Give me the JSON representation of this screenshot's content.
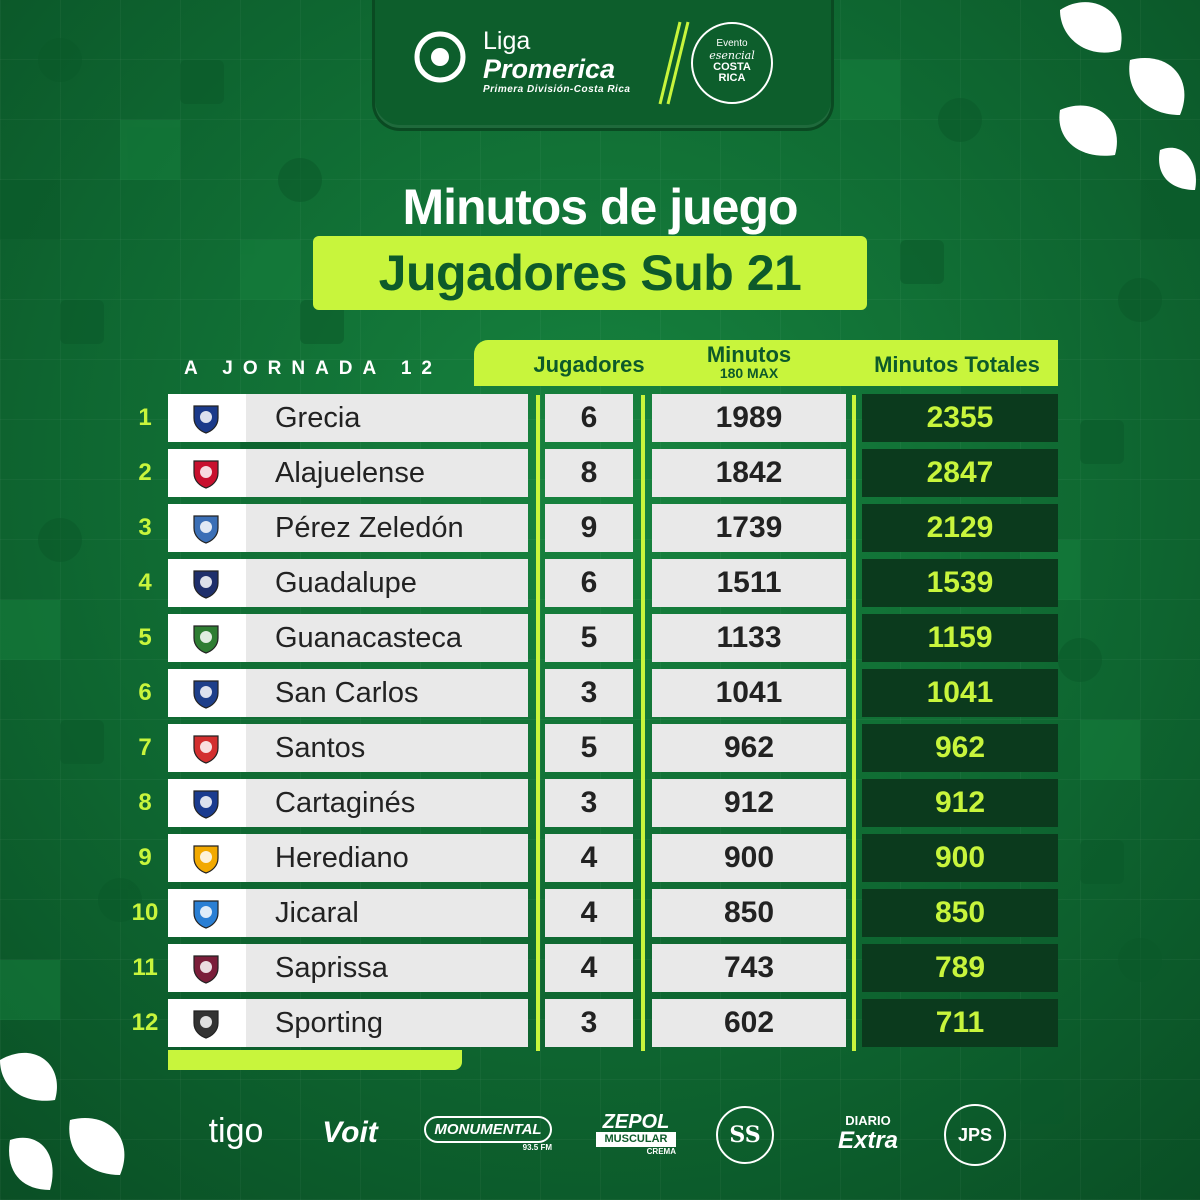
{
  "header": {
    "liga_line1": "Liga",
    "liga_line2": "Promerica",
    "liga_line3": "Primera División-Costa Rica",
    "evento_line1": "Evento",
    "evento_line2": "esencial",
    "evento_line3": "COSTA",
    "evento_line4": "RICA"
  },
  "title": "Minutos de juego",
  "subtitle": "Jugadores Sub 21",
  "jornada": "A JORNADA 12",
  "columns": {
    "jugadores": "Jugadores",
    "minutos": "Minutos",
    "minutos_sub": "180 MAX",
    "minutos_totales": "Minutos Totales"
  },
  "rows": [
    {
      "rank": "1",
      "team": "Grecia",
      "jugadores": "6",
      "minutos": "1989",
      "totales": "2355",
      "crest_color": "#1b3a8a"
    },
    {
      "rank": "2",
      "team": "Alajuelense",
      "jugadores": "8",
      "minutos": "1842",
      "totales": "2847",
      "crest_color": "#c8102e"
    },
    {
      "rank": "3",
      "team": "Pérez Zeledón",
      "jugadores": "9",
      "minutos": "1739",
      "totales": "2129",
      "crest_color": "#3b6fb6"
    },
    {
      "rank": "4",
      "team": "Guadalupe",
      "jugadores": "6",
      "minutos": "1511",
      "totales": "1539",
      "crest_color": "#1f2f6b"
    },
    {
      "rank": "5",
      "team": "Guanacasteca",
      "jugadores": "5",
      "minutos": "1133",
      "totales": "1159",
      "crest_color": "#2e7d32"
    },
    {
      "rank": "6",
      "team": "San Carlos",
      "jugadores": "3",
      "minutos": "1041",
      "totales": "1041",
      "crest_color": "#1e3f8a"
    },
    {
      "rank": "7",
      "team": "Santos",
      "jugadores": "5",
      "minutos": "962",
      "totales": "962",
      "crest_color": "#d32f2f"
    },
    {
      "rank": "8",
      "team": "Cartaginés",
      "jugadores": "3",
      "minutos": "912",
      "totales": "912",
      "crest_color": "#1a3b8f"
    },
    {
      "rank": "9",
      "team": "Herediano",
      "jugadores": "4",
      "minutos": "900",
      "totales": "900",
      "crest_color": "#f2a900"
    },
    {
      "rank": "10",
      "team": "Jicaral",
      "jugadores": "4",
      "minutos": "850",
      "totales": "850",
      "crest_color": "#2a7fd4"
    },
    {
      "rank": "11",
      "team": "Saprissa",
      "jugadores": "4",
      "minutos": "743",
      "totales": "789",
      "crest_color": "#7b1e3a"
    },
    {
      "rank": "12",
      "team": "Sporting",
      "jugadores": "3",
      "minutos": "602",
      "totales": "711",
      "crest_color": "#333333"
    }
  ],
  "sponsors": {
    "tigo": "tigo",
    "voit": "Voit",
    "monumental": "MONUMENTAL",
    "monumental_sub": "93.5 FM",
    "zepol": "ZEPOL",
    "zepol_sub": "MUSCULAR",
    "zepol_sub2": "CREMA",
    "super_salon": "SS",
    "diario": "DIARIO",
    "extra": "Extra",
    "jps": "JPS"
  },
  "colors": {
    "background": "#0f6a32",
    "accent": "#c8f53c",
    "total_cell": "#0b3a1d"
  }
}
